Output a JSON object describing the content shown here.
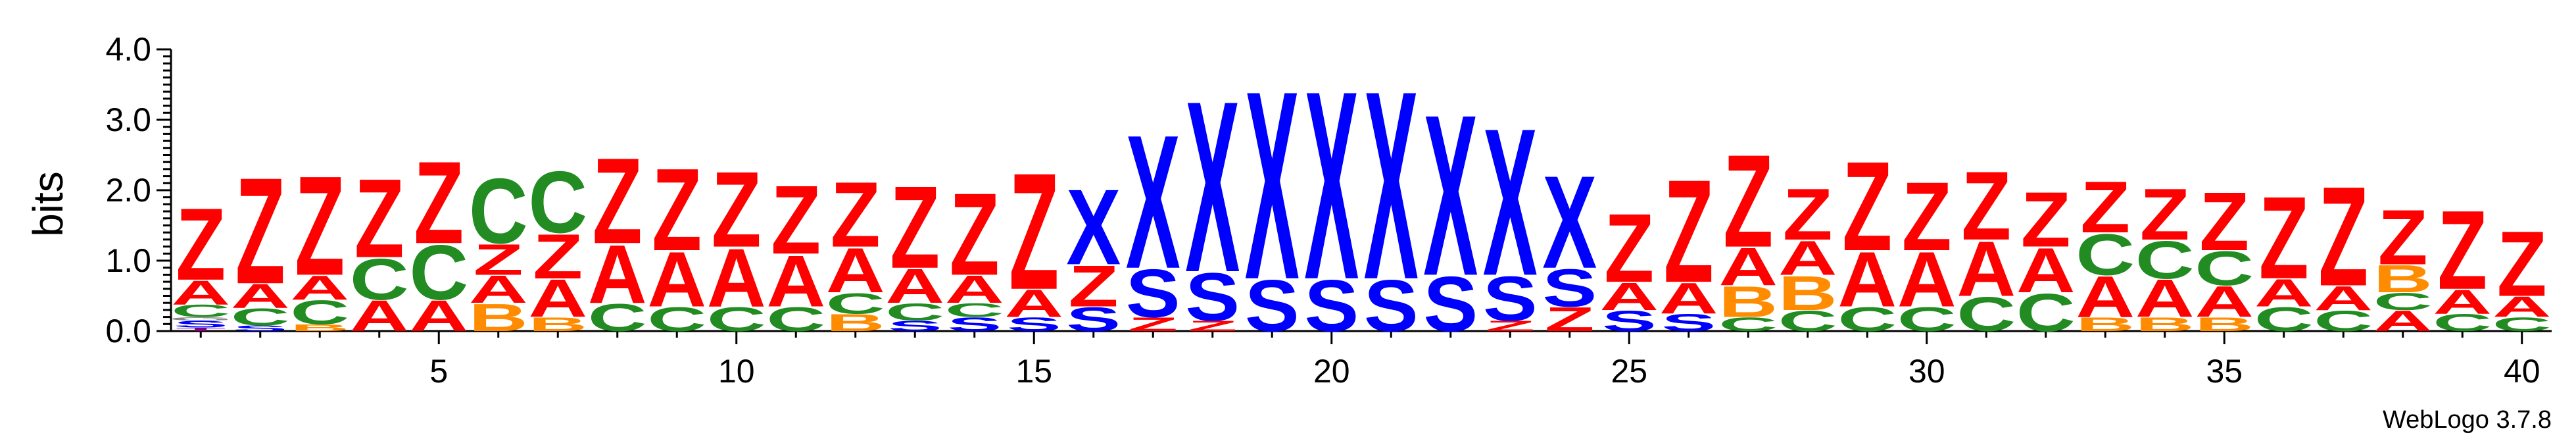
{
  "chart_data": {
    "type": "sequence_logo",
    "ylabel": "bits",
    "ylim": [
      0,
      4.0
    ],
    "yticks": [
      "0.0",
      "1.0",
      "2.0",
      "3.0",
      "4.0"
    ],
    "xticks": [
      5,
      10,
      15,
      20,
      25,
      30,
      35,
      40
    ],
    "credit": "WebLogo 3.7.8",
    "colors": {
      "Z": "#ff0000",
      "A": "#ff0000",
      "X": "#0000ff",
      "S": "#0000ff",
      "C": "#228b22",
      "B": "#ff8c00",
      "T": "#800080",
      "R": "#ff0000"
    },
    "positions": [
      {
        "pos": 1,
        "stack": [
          [
            "T",
            0.05
          ],
          [
            "S",
            0.1
          ],
          [
            "G",
            0.05
          ],
          [
            "C",
            0.18
          ],
          [
            "A",
            0.35
          ],
          [
            "Z",
            1.05
          ]
        ]
      },
      {
        "pos": 2,
        "stack": [
          [
            "S",
            0.08
          ],
          [
            "C",
            0.25
          ],
          [
            "A",
            0.35
          ],
          [
            "Z",
            1.55
          ]
        ]
      },
      {
        "pos": 3,
        "stack": [
          [
            "B",
            0.1
          ],
          [
            "C",
            0.35
          ],
          [
            "A",
            0.35
          ],
          [
            "Z",
            1.45
          ]
        ]
      },
      {
        "pos": 4,
        "stack": [
          [
            "A",
            0.45
          ],
          [
            "C",
            0.6
          ],
          [
            "Z",
            1.15
          ]
        ]
      },
      {
        "pos": 5,
        "stack": [
          [
            "A",
            0.45
          ],
          [
            "C",
            0.8
          ],
          [
            "Z",
            1.2
          ]
        ]
      },
      {
        "pos": 6,
        "stack": [
          [
            "B",
            0.4
          ],
          [
            "A",
            0.4
          ],
          [
            "Z",
            0.45
          ],
          [
            "C",
            0.95
          ]
        ]
      },
      {
        "pos": 7,
        "stack": [
          [
            "B",
            0.2
          ],
          [
            "A",
            0.55
          ],
          [
            "Z",
            0.65
          ],
          [
            "C",
            0.9
          ]
        ]
      },
      {
        "pos": 8,
        "stack": [
          [
            "C",
            0.4
          ],
          [
            "A",
            0.85
          ],
          [
            "Z",
            1.25
          ]
        ]
      },
      {
        "pos": 9,
        "stack": [
          [
            "C",
            0.35
          ],
          [
            "A",
            0.8
          ],
          [
            "Z",
            1.2
          ]
        ]
      },
      {
        "pos": 10,
        "stack": [
          [
            "C",
            0.35
          ],
          [
            "A",
            0.85
          ],
          [
            "Z",
            1.1
          ]
        ]
      },
      {
        "pos": 11,
        "stack": [
          [
            "C",
            0.35
          ],
          [
            "A",
            0.75
          ],
          [
            "Z",
            1.0
          ]
        ]
      },
      {
        "pos": 12,
        "stack": [
          [
            "B",
            0.25
          ],
          [
            "C",
            0.3
          ],
          [
            "A",
            0.65
          ],
          [
            "Z",
            0.95
          ]
        ]
      },
      {
        "pos": 13,
        "stack": [
          [
            "S",
            0.15
          ],
          [
            "C",
            0.25
          ],
          [
            "A",
            0.5
          ],
          [
            "Z",
            1.2
          ]
        ]
      },
      {
        "pos": 14,
        "stack": [
          [
            "S",
            0.2
          ],
          [
            "C",
            0.2
          ],
          [
            "A",
            0.4
          ],
          [
            "Z",
            1.2
          ]
        ]
      },
      {
        "pos": 15,
        "stack": [
          [
            "S",
            0.2
          ],
          [
            "A",
            0.4
          ],
          [
            "Z",
            1.7
          ]
        ]
      },
      {
        "pos": 16,
        "stack": [
          [
            "S",
            0.35
          ],
          [
            "Z",
            0.6
          ],
          [
            "X",
            1.1
          ]
        ]
      },
      {
        "pos": 17,
        "stack": [
          [
            "Z",
            0.2
          ],
          [
            "S",
            0.7
          ],
          [
            "X",
            1.95
          ]
        ]
      },
      {
        "pos": 18,
        "stack": [
          [
            "Z",
            0.15
          ],
          [
            "S",
            0.7
          ],
          [
            "X",
            2.5
          ]
        ]
      },
      {
        "pos": 19,
        "stack": [
          [
            "S",
            0.75
          ],
          [
            "X",
            2.75
          ]
        ]
      },
      {
        "pos": 20,
        "stack": [
          [
            "S",
            0.75
          ],
          [
            "X",
            2.75
          ]
        ]
      },
      {
        "pos": 21,
        "stack": [
          [
            "S",
            0.75
          ],
          [
            "X",
            2.75
          ]
        ]
      },
      {
        "pos": 22,
        "stack": [
          [
            "S",
            0.8
          ],
          [
            "X",
            2.35
          ]
        ]
      },
      {
        "pos": 23,
        "stack": [
          [
            "Z",
            0.15
          ],
          [
            "S",
            0.65
          ],
          [
            "X",
            2.15
          ]
        ]
      },
      {
        "pos": 24,
        "stack": [
          [
            "Z",
            0.35
          ],
          [
            "S",
            0.55
          ],
          [
            "X",
            1.35
          ]
        ]
      },
      {
        "pos": 25,
        "stack": [
          [
            "S",
            0.3
          ],
          [
            "A",
            0.4
          ],
          [
            "Z",
            1.0
          ]
        ]
      },
      {
        "pos": 26,
        "stack": [
          [
            "S",
            0.25
          ],
          [
            "A",
            0.45
          ],
          [
            "Z",
            1.5
          ]
        ]
      },
      {
        "pos": 27,
        "stack": [
          [
            "C",
            0.2
          ],
          [
            "B",
            0.45
          ],
          [
            "A",
            0.55
          ],
          [
            "Z",
            1.35
          ]
        ]
      },
      {
        "pos": 28,
        "stack": [
          [
            "C",
            0.3
          ],
          [
            "B",
            0.5
          ],
          [
            "A",
            0.5
          ],
          [
            "Z",
            0.75
          ]
        ]
      },
      {
        "pos": 29,
        "stack": [
          [
            "C",
            0.35
          ],
          [
            "A",
            0.8
          ],
          [
            "Z",
            1.3
          ]
        ]
      },
      {
        "pos": 30,
        "stack": [
          [
            "C",
            0.35
          ],
          [
            "A",
            0.8
          ],
          [
            "Z",
            1.0
          ]
        ]
      },
      {
        "pos": 31,
        "stack": [
          [
            "C",
            0.5
          ],
          [
            "A",
            0.8
          ],
          [
            "Z",
            1.0
          ]
        ]
      },
      {
        "pos": 32,
        "stack": [
          [
            "C",
            0.55
          ],
          [
            "A",
            0.65
          ],
          [
            "Z",
            0.8
          ]
        ]
      },
      {
        "pos": 33,
        "stack": [
          [
            "B",
            0.2
          ],
          [
            "A",
            0.6
          ],
          [
            "C",
            0.6
          ],
          [
            "Z",
            0.75
          ]
        ]
      },
      {
        "pos": 34,
        "stack": [
          [
            "B",
            0.2
          ],
          [
            "A",
            0.55
          ],
          [
            "C",
            0.55
          ],
          [
            "Z",
            0.75
          ]
        ]
      },
      {
        "pos": 35,
        "stack": [
          [
            "B",
            0.2
          ],
          [
            "A",
            0.45
          ],
          [
            "C",
            0.5
          ],
          [
            "Z",
            0.85
          ]
        ]
      },
      {
        "pos": 36,
        "stack": [
          [
            "C",
            0.35
          ],
          [
            "A",
            0.4
          ],
          [
            "Z",
            1.2
          ]
        ]
      },
      {
        "pos": 37,
        "stack": [
          [
            "C",
            0.3
          ],
          [
            "A",
            0.35
          ],
          [
            "Z",
            1.45
          ]
        ]
      },
      {
        "pos": 38,
        "stack": [
          [
            "A",
            0.3
          ],
          [
            "C",
            0.25
          ],
          [
            "B",
            0.4
          ],
          [
            "Z",
            0.8
          ]
        ]
      },
      {
        "pos": 39,
        "stack": [
          [
            "C",
            0.25
          ],
          [
            "A",
            0.35
          ],
          [
            "Z",
            1.15
          ]
        ]
      },
      {
        "pos": 40,
        "stack": [
          [
            "C",
            0.2
          ],
          [
            "A",
            0.3
          ],
          [
            "Z",
            0.95
          ]
        ]
      }
    ]
  }
}
